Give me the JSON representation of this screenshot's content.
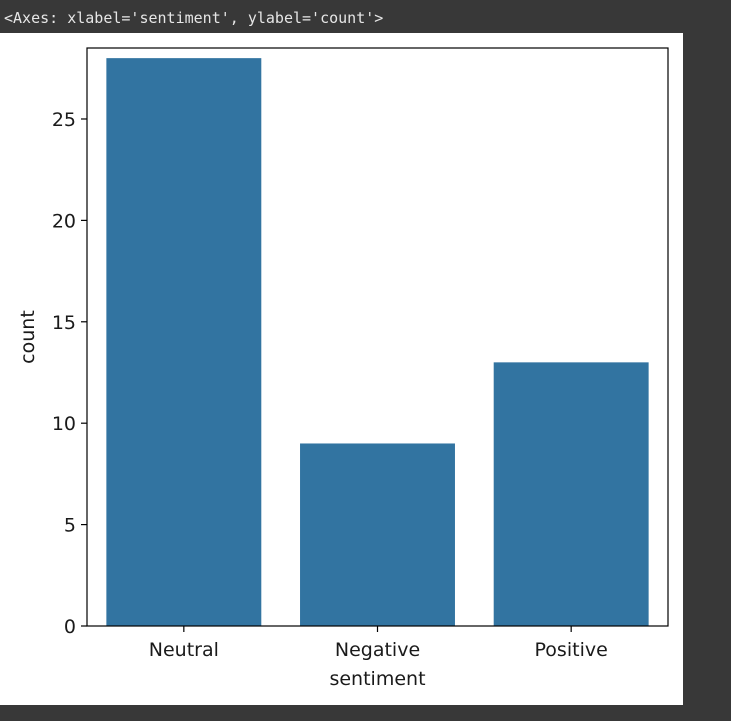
{
  "output": {
    "repr_text": "<Axes: xlabel='sentiment', ylabel='count'>"
  },
  "colors": {
    "cell_background": "#383838",
    "figure_background": "#ffffff",
    "bar": "#3274a1",
    "axis": "#000000"
  },
  "chart_data": {
    "type": "bar",
    "categories": [
      "Neutral",
      "Negative",
      "Positive"
    ],
    "values": [
      28,
      9,
      13
    ],
    "title": "",
    "xlabel": "sentiment",
    "ylabel": "count",
    "ylim": [
      0,
      28.5
    ],
    "yticks": [
      0,
      5,
      10,
      15,
      20,
      25
    ],
    "grid": false,
    "legend": false
  }
}
